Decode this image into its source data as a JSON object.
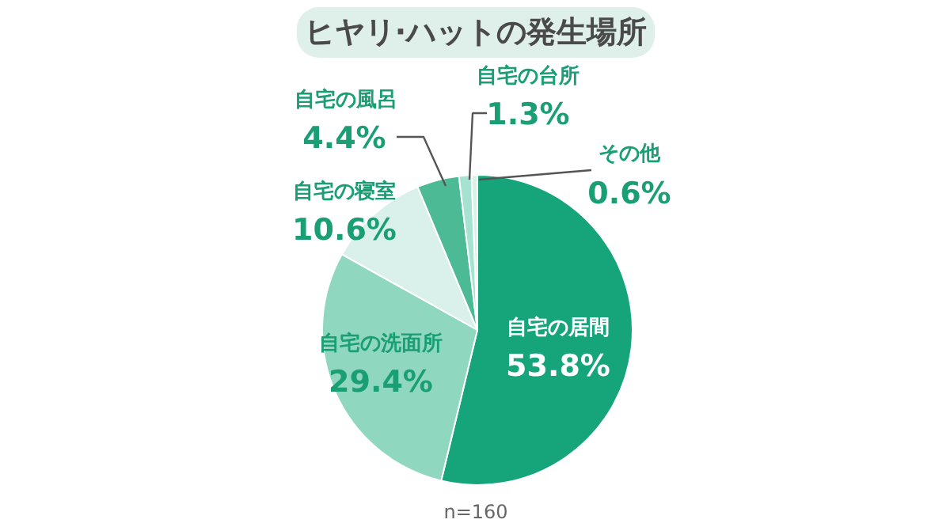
{
  "chart_data": {
    "type": "pie",
    "title": "ヒヤリ·ハットの発生場所",
    "categories": [
      "自宅の居間",
      "自宅の洗面所",
      "自宅の寝室",
      "自宅の風呂",
      "自宅の台所",
      "その他"
    ],
    "values": [
      53.8,
      29.4,
      10.6,
      4.4,
      1.3,
      0.6
    ],
    "colors": [
      "#16a47a",
      "#8fd8bf",
      "#d9f1ea",
      "#4dba96",
      "#a6e2d0",
      "#d6f2ea"
    ],
    "value_labels": [
      "53.8%",
      "29.4%",
      "10.6%",
      "4.4%",
      "1.3%",
      "0.6%"
    ],
    "annotations": [
      "n=160"
    ]
  }
}
